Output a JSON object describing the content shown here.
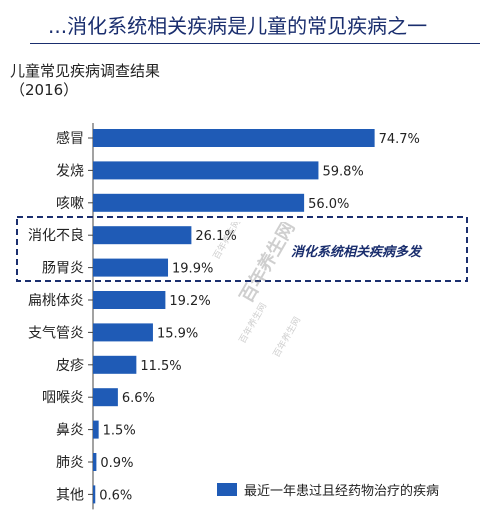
{
  "header": {
    "title": "...消化系统相关疾病是儿童的常见疾病之一"
  },
  "watermark": {
    "texts": [
      "百年养生网",
      "百年养生网",
      "百年养生网",
      "百年养生网"
    ]
  },
  "chart_data": {
    "type": "bar",
    "orientation": "horizontal",
    "title_lines": [
      "儿童常见疾病调查结果",
      "（2016）"
    ],
    "categories": [
      "感冒",
      "发烧",
      "咳嗽",
      "消化不良",
      "肠胃炎",
      "扁桃体炎",
      "支气管炎",
      "皮疹",
      "咽喉炎",
      "鼻炎",
      "肺炎",
      "其他"
    ],
    "values": [
      74.7,
      59.8,
      56.0,
      26.1,
      19.9,
      19.2,
      15.9,
      11.5,
      6.6,
      1.5,
      0.9,
      0.6
    ],
    "value_labels": [
      "74.7%",
      "59.8%",
      "56.0%",
      "26.1%",
      "19.9%",
      "19.2%",
      "15.9%",
      "11.5%",
      "6.6%",
      "1.5%",
      "0.9%",
      "0.6%"
    ],
    "xlim": [
      0,
      100
    ],
    "grid": false,
    "bar_color": "#1f5bb6",
    "legend": {
      "label": "最近一年患过且经药物治疗的疾病",
      "placement": "bottom-right"
    },
    "annotation": {
      "text": "消化系统相关疾病多发",
      "highlighted_categories": [
        "消化不良",
        "肠胃炎"
      ],
      "color": "#1a2e6e"
    }
  }
}
